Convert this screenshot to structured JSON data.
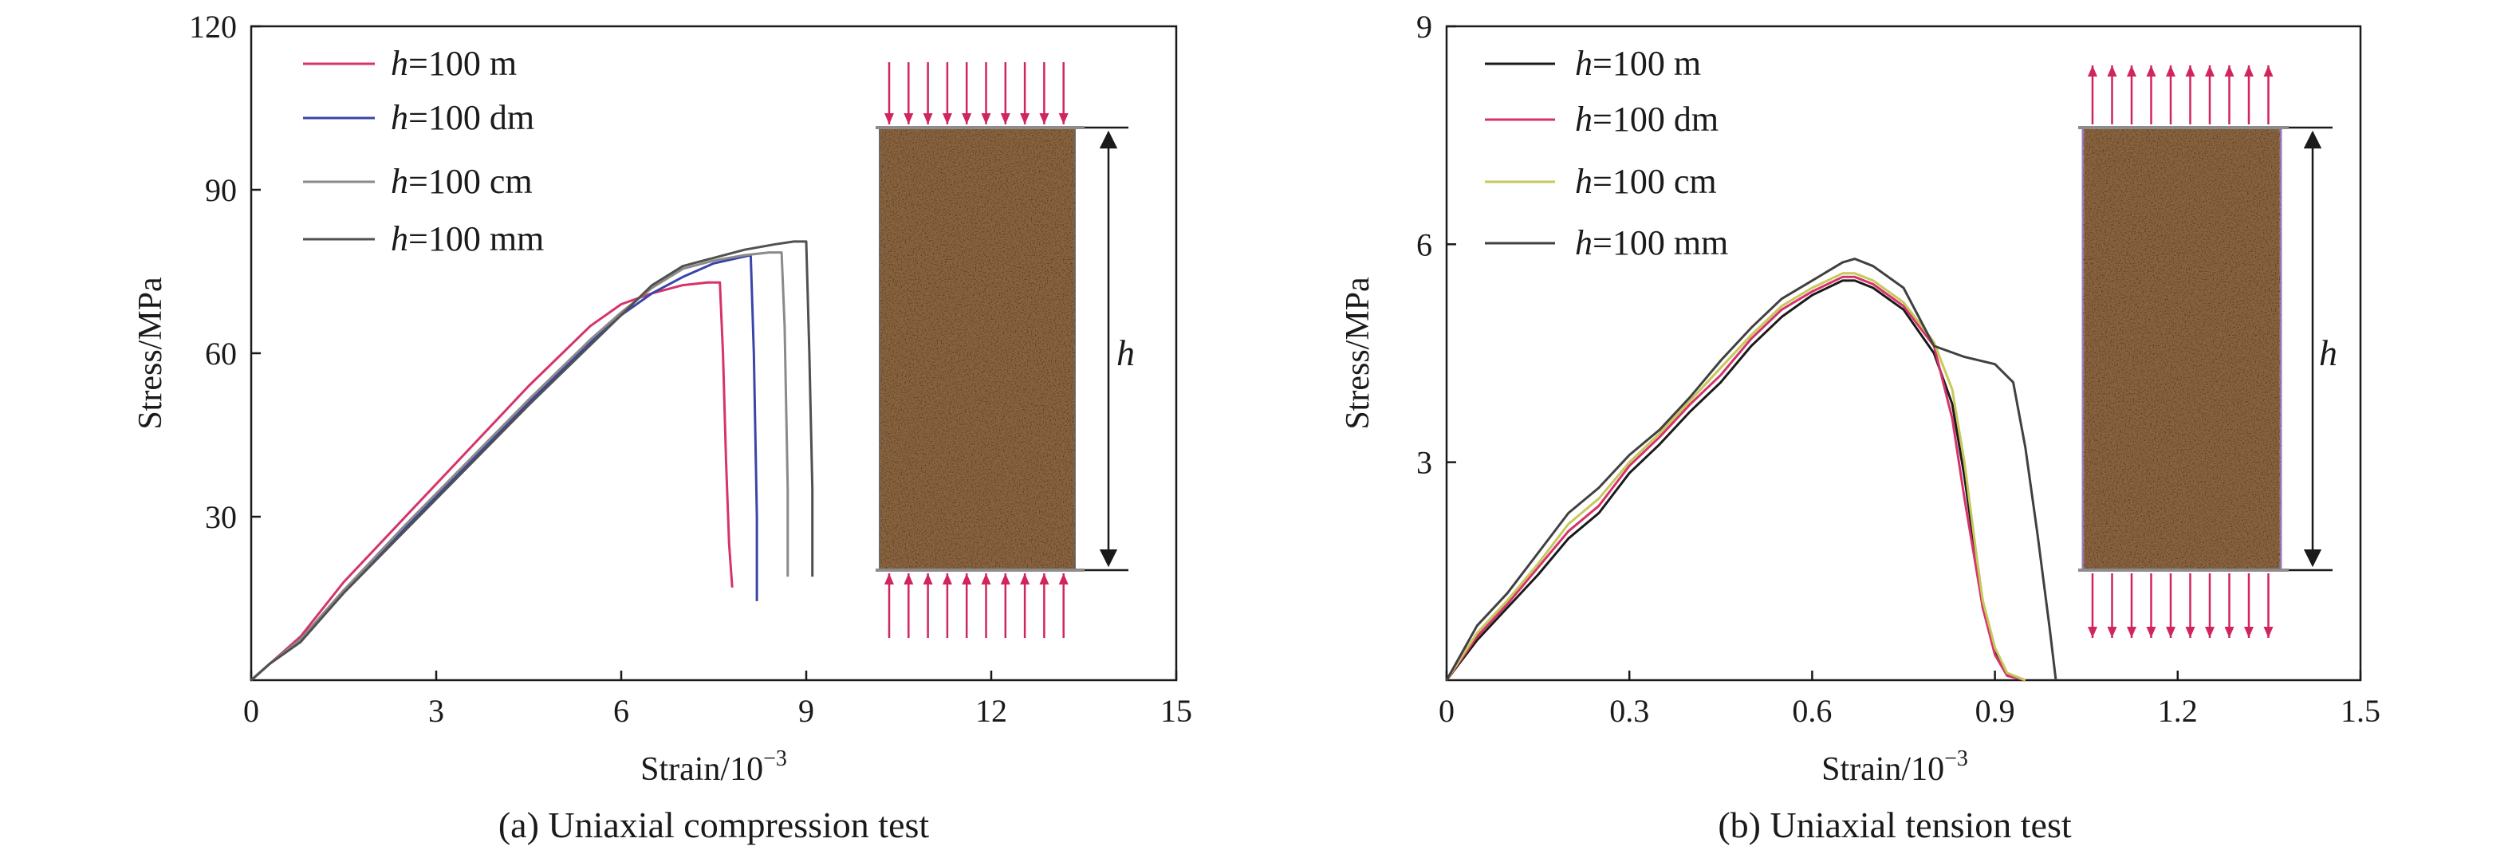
{
  "chart_data": [
    {
      "type": "line",
      "caption": "(a) Uniaxial compression test",
      "xlabel": "Strain/10",
      "xlabel_sup": "−3",
      "ylabel": "Stress/MPa",
      "xlim": [
        0,
        15
      ],
      "ylim": [
        0,
        120
      ],
      "xticks": [
        "0",
        "3",
        "6",
        "9",
        "12",
        "15"
      ],
      "yticks": [
        "30",
        "60",
        "90",
        "120"
      ],
      "legend_position": "top-left",
      "series": [
        {
          "name": "h=100 m",
          "legend_prefix": "h",
          "legend_suffix": "=100 m",
          "color": "#d6336c",
          "x": [
            0,
            0.3,
            0.8,
            1.5,
            2.5,
            3.5,
            4.5,
            5.5,
            6.0,
            6.5,
            7.0,
            7.4,
            7.6,
            7.65,
            7.7,
            7.75,
            7.8
          ],
          "y": [
            0,
            3,
            8,
            18,
            30,
            42,
            54,
            65,
            69,
            71,
            72.5,
            73,
            73,
            60,
            40,
            25,
            17
          ]
        },
        {
          "name": "h=100 dm",
          "legend_prefix": "h",
          "legend_suffix": "=100 dm",
          "color": "#3a45a8",
          "x": [
            0,
            0.3,
            0.8,
            1.5,
            2.5,
            3.5,
            4.5,
            5.5,
            6.0,
            6.5,
            7.0,
            7.5,
            7.9,
            8.1,
            8.15,
            8.2,
            8.2
          ],
          "y": [
            0,
            3,
            7.5,
            16.5,
            28,
            39.5,
            51,
            62,
            67,
            71,
            74,
            76.5,
            77.5,
            78,
            60,
            30,
            14.5
          ]
        },
        {
          "name": "h=100 cm",
          "legend_prefix": "h",
          "legend_suffix": "=100 cm",
          "color": "#8a8a8a",
          "x": [
            0,
            0.3,
            0.8,
            1.5,
            2.5,
            3.5,
            4.5,
            5.5,
            6.0,
            6.5,
            7.0,
            7.5,
            8.0,
            8.4,
            8.6,
            8.65,
            8.7,
            8.7
          ],
          "y": [
            0,
            3,
            7.5,
            16.5,
            28.5,
            40,
            51.5,
            62.5,
            67.5,
            72,
            75.5,
            77,
            78,
            78.5,
            78.5,
            65,
            35,
            19
          ]
        },
        {
          "name": "h=100 mm",
          "legend_prefix": "h",
          "legend_suffix": "=100 mm",
          "color": "#505050",
          "x": [
            0,
            0.3,
            0.8,
            1.5,
            2.5,
            3.5,
            4.5,
            5.5,
            6.0,
            6.5,
            7.0,
            7.5,
            8.0,
            8.5,
            8.8,
            9.0,
            9.05,
            9.1,
            9.1
          ],
          "y": [
            0,
            3,
            7,
            16,
            27.5,
            39,
            50.5,
            61.5,
            67,
            72.5,
            76,
            77.5,
            79,
            80,
            80.5,
            80.5,
            60,
            35,
            19
          ]
        }
      ]
    },
    {
      "type": "line",
      "caption": "(b) Uniaxial tension test",
      "xlabel": "Strain/10",
      "xlabel_sup": "−3",
      "ylabel": "Stress/MPa",
      "xlim": [
        0,
        1.5
      ],
      "ylim": [
        0,
        9
      ],
      "xticks": [
        "0",
        "0.3",
        "0.6",
        "0.9",
        "1.2",
        "1.5"
      ],
      "yticks": [
        "3",
        "6",
        "9"
      ],
      "legend_position": "top-left",
      "series": [
        {
          "name": "h=100 m",
          "legend_prefix": "h",
          "legend_suffix": "=100 m",
          "color": "#1a1a1a",
          "x": [
            0,
            0.05,
            0.1,
            0.15,
            0.2,
            0.25,
            0.3,
            0.35,
            0.4,
            0.45,
            0.5,
            0.55,
            0.6,
            0.65,
            0.67,
            0.7,
            0.75,
            0.8,
            0.83,
            0.85,
            0.87,
            0.88,
            0.9,
            0.92,
            0.95
          ],
          "y": [
            0,
            0.55,
            1.0,
            1.45,
            1.95,
            2.3,
            2.85,
            3.25,
            3.7,
            4.1,
            4.6,
            5.0,
            5.3,
            5.5,
            5.5,
            5.4,
            5.1,
            4.5,
            3.8,
            2.8,
            1.6,
            1.0,
            0.4,
            0.08,
            0
          ]
        },
        {
          "name": "h=100 dm",
          "legend_prefix": "h",
          "legend_suffix": "=100 dm",
          "color": "#d6336c",
          "x": [
            0,
            0.05,
            0.1,
            0.15,
            0.2,
            0.25,
            0.3,
            0.35,
            0.4,
            0.45,
            0.5,
            0.55,
            0.6,
            0.65,
            0.67,
            0.7,
            0.75,
            0.8,
            0.83,
            0.85,
            0.87,
            0.88,
            0.9,
            0.92,
            0.95
          ],
          "y": [
            0,
            0.6,
            1.05,
            1.55,
            2.05,
            2.4,
            2.95,
            3.35,
            3.8,
            4.2,
            4.7,
            5.1,
            5.35,
            5.55,
            5.55,
            5.45,
            5.15,
            4.6,
            3.6,
            2.5,
            1.5,
            1.0,
            0.35,
            0.06,
            0
          ]
        },
        {
          "name": "h=100 cm",
          "legend_prefix": "h",
          "legend_suffix": "=100 cm",
          "color": "#c6c95a",
          "x": [
            0,
            0.05,
            0.1,
            0.15,
            0.2,
            0.25,
            0.3,
            0.35,
            0.4,
            0.45,
            0.5,
            0.55,
            0.6,
            0.65,
            0.67,
            0.7,
            0.75,
            0.8,
            0.83,
            0.85,
            0.87,
            0.88,
            0.9,
            0.92,
            0.95
          ],
          "y": [
            0,
            0.65,
            1.1,
            1.6,
            2.15,
            2.5,
            3.0,
            3.4,
            3.85,
            4.3,
            4.75,
            5.15,
            5.4,
            5.6,
            5.6,
            5.5,
            5.2,
            4.65,
            4.0,
            3.0,
            1.7,
            1.1,
            0.45,
            0.1,
            0
          ]
        },
        {
          "name": "h=100 mm",
          "legend_prefix": "h",
          "legend_suffix": "=100 mm",
          "color": "#404040",
          "x": [
            0,
            0.05,
            0.1,
            0.15,
            0.2,
            0.25,
            0.3,
            0.35,
            0.4,
            0.45,
            0.5,
            0.55,
            0.6,
            0.65,
            0.67,
            0.7,
            0.75,
            0.8,
            0.85,
            0.9,
            0.93,
            0.95,
            0.97,
            0.99,
            1.0
          ],
          "y": [
            0,
            0.75,
            1.2,
            1.75,
            2.3,
            2.65,
            3.1,
            3.45,
            3.9,
            4.4,
            4.85,
            5.25,
            5.5,
            5.75,
            5.8,
            5.7,
            5.4,
            4.6,
            4.45,
            4.35,
            4.1,
            3.2,
            2.0,
            0.7,
            0
          ]
        }
      ]
    }
  ],
  "specimens": [
    {
      "dimension_label": "h",
      "arrow_color": "#d0265c",
      "load": "compression"
    },
    {
      "dimension_label": "h",
      "arrow_color": "#d0265c",
      "load": "tension"
    }
  ]
}
